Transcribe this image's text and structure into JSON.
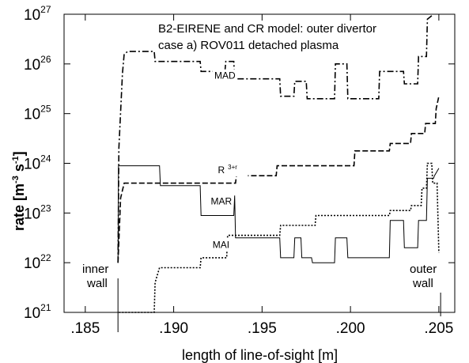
{
  "chart_data": {
    "type": "line",
    "title": "",
    "xlabel": "length of line-of-sight   [m]",
    "ylabel": "rate [m",
    "ylabel_exp1": "-3",
    "ylabel_mid": " s",
    "ylabel_exp2": "-1",
    "ylabel_end": "]",
    "annotation_line1": "B2-EIRENE and CR model: outer divertor",
    "annotation_line2": "case a)   ROV011     detached plasma",
    "inner_wall_label": [
      "inner",
      "wall"
    ],
    "outer_wall_label": [
      "outer",
      "wall"
    ],
    "xlim": [
      0.1838,
      0.2059
    ],
    "ylim_log10": [
      21,
      27
    ],
    "y_scale": "log",
    "grid": false,
    "legend": "none",
    "xticks": [
      0.185,
      0.19,
      0.195,
      0.2,
      0.205
    ],
    "xtick_labels": [
      ".185",
      ".190",
      ".195",
      ".200",
      ".205"
    ],
    "yticks": [
      {
        "base": "10",
        "exp": "21"
      },
      {
        "base": "10",
        "exp": "22"
      },
      {
        "base": "10",
        "exp": "23"
      },
      {
        "base": "10",
        "exp": "24"
      },
      {
        "base": "10",
        "exp": "25"
      },
      {
        "base": "10",
        "exp": "26"
      },
      {
        "base": "10",
        "exp": "27"
      }
    ],
    "series": [
      {
        "name": "MAD",
        "style": "dashdot",
        "points": [
          [
            0.18685,
            22.0
          ],
          [
            0.1869,
            24.3
          ],
          [
            0.1871,
            25.8
          ],
          [
            0.1872,
            26.2
          ],
          [
            0.1874,
            26.25
          ],
          [
            0.1889,
            26.25
          ],
          [
            0.18895,
            26.05
          ],
          [
            0.1915,
            26.05
          ],
          [
            0.19155,
            25.85
          ],
          [
            0.1929,
            25.85
          ],
          [
            0.19295,
            26.05
          ],
          [
            0.1934,
            26.05
          ],
          [
            0.19345,
            25.7
          ],
          [
            0.196,
            25.7
          ],
          [
            0.19605,
            25.35
          ],
          [
            0.1968,
            25.35
          ],
          [
            0.19685,
            25.65
          ],
          [
            0.1975,
            25.65
          ],
          [
            0.19755,
            25.3
          ],
          [
            0.1991,
            25.3
          ],
          [
            0.19915,
            26.0
          ],
          [
            0.1998,
            26.0
          ],
          [
            0.19985,
            25.3
          ],
          [
            0.2016,
            25.3
          ],
          [
            0.20165,
            25.85
          ],
          [
            0.203,
            25.85
          ],
          [
            0.20305,
            25.6
          ],
          [
            0.2038,
            25.6
          ],
          [
            0.20385,
            26.15
          ],
          [
            0.2043,
            26.15
          ],
          [
            0.20435,
            26.9
          ],
          [
            0.2047,
            27.0
          ]
        ],
        "label": "MAD"
      },
      {
        "name": "R",
        "label_sup": "3+r",
        "style": "dashed",
        "points": [
          [
            0.18685,
            22.0
          ],
          [
            0.187,
            23.3
          ],
          [
            0.1872,
            23.6
          ],
          [
            0.1891,
            23.6
          ],
          [
            0.18915,
            23.6
          ],
          [
            0.1935,
            23.6
          ],
          [
            0.19355,
            23.75
          ],
          [
            0.1958,
            23.75
          ],
          [
            0.19585,
            23.95
          ],
          [
            0.2002,
            23.95
          ],
          [
            0.20025,
            24.25
          ],
          [
            0.2022,
            24.25
          ],
          [
            0.20225,
            24.4
          ],
          [
            0.2034,
            24.4
          ],
          [
            0.20345,
            24.6
          ],
          [
            0.2042,
            24.6
          ],
          [
            0.20425,
            24.8
          ],
          [
            0.2048,
            24.8
          ],
          [
            0.20485,
            25.1
          ],
          [
            0.205,
            25.35
          ]
        ],
        "label": "R"
      },
      {
        "name": "MAR",
        "style": "solid",
        "points": [
          [
            0.18685,
            22.0
          ],
          [
            0.18688,
            23.95
          ],
          [
            0.1892,
            23.95
          ],
          [
            0.18925,
            23.55
          ],
          [
            0.1915,
            23.55
          ],
          [
            0.19155,
            22.95
          ],
          [
            0.1934,
            22.95
          ],
          [
            0.19345,
            23.35
          ],
          [
            0.1935,
            22.5
          ],
          [
            0.196,
            22.5
          ],
          [
            0.19605,
            22.1
          ],
          [
            0.1968,
            22.1
          ],
          [
            0.19685,
            22.5
          ],
          [
            0.1972,
            22.5
          ],
          [
            0.19725,
            22.1
          ],
          [
            0.1978,
            22.1
          ],
          [
            0.19785,
            22.0
          ],
          [
            0.1991,
            22.0
          ],
          [
            0.19915,
            22.5
          ],
          [
            0.1998,
            22.5
          ],
          [
            0.19985,
            22.1
          ],
          [
            0.2022,
            22.1
          ],
          [
            0.20225,
            22.85
          ],
          [
            0.203,
            22.85
          ],
          [
            0.20305,
            22.3
          ],
          [
            0.2038,
            22.3
          ],
          [
            0.20385,
            22.85
          ],
          [
            0.2043,
            22.85
          ],
          [
            0.20435,
            23.7
          ],
          [
            0.2047,
            23.7
          ],
          [
            0.20475,
            23.75
          ],
          [
            0.205,
            23.9
          ]
        ],
        "label": "MAR"
      },
      {
        "name": "MAI",
        "style": "dotted",
        "points": [
          [
            0.1869,
            21.0
          ],
          [
            0.1889,
            21.0
          ],
          [
            0.18895,
            21.6
          ],
          [
            0.1892,
            21.9
          ],
          [
            0.1915,
            21.9
          ],
          [
            0.19155,
            22.1
          ],
          [
            0.193,
            22.1
          ],
          [
            0.19305,
            22.55
          ],
          [
            0.196,
            22.55
          ],
          [
            0.19605,
            22.75
          ],
          [
            0.198,
            22.75
          ],
          [
            0.19805,
            22.95
          ],
          [
            0.2022,
            22.95
          ],
          [
            0.20225,
            23.05
          ],
          [
            0.2034,
            23.05
          ],
          [
            0.20345,
            23.15
          ],
          [
            0.204,
            23.15
          ],
          [
            0.20405,
            23.5
          ],
          [
            0.2043,
            23.5
          ],
          [
            0.20435,
            24.0
          ],
          [
            0.2046,
            24.0
          ],
          [
            0.20465,
            23.6
          ],
          [
            0.2049,
            23.6
          ],
          [
            0.205,
            22.2
          ]
        ],
        "label": "MAI"
      }
    ],
    "series_label_positions": [
      {
        "series": "MAD",
        "x": 0.1923,
        "y": 25.7
      },
      {
        "series": "R",
        "x": 0.1925,
        "y": 23.8
      },
      {
        "series": "MAR",
        "x": 0.1921,
        "y": 23.17
      },
      {
        "series": "MAI",
        "x": 0.1922,
        "y": 22.3
      }
    ],
    "wall_markers": [
      0.18685,
      0.2051
    ]
  }
}
